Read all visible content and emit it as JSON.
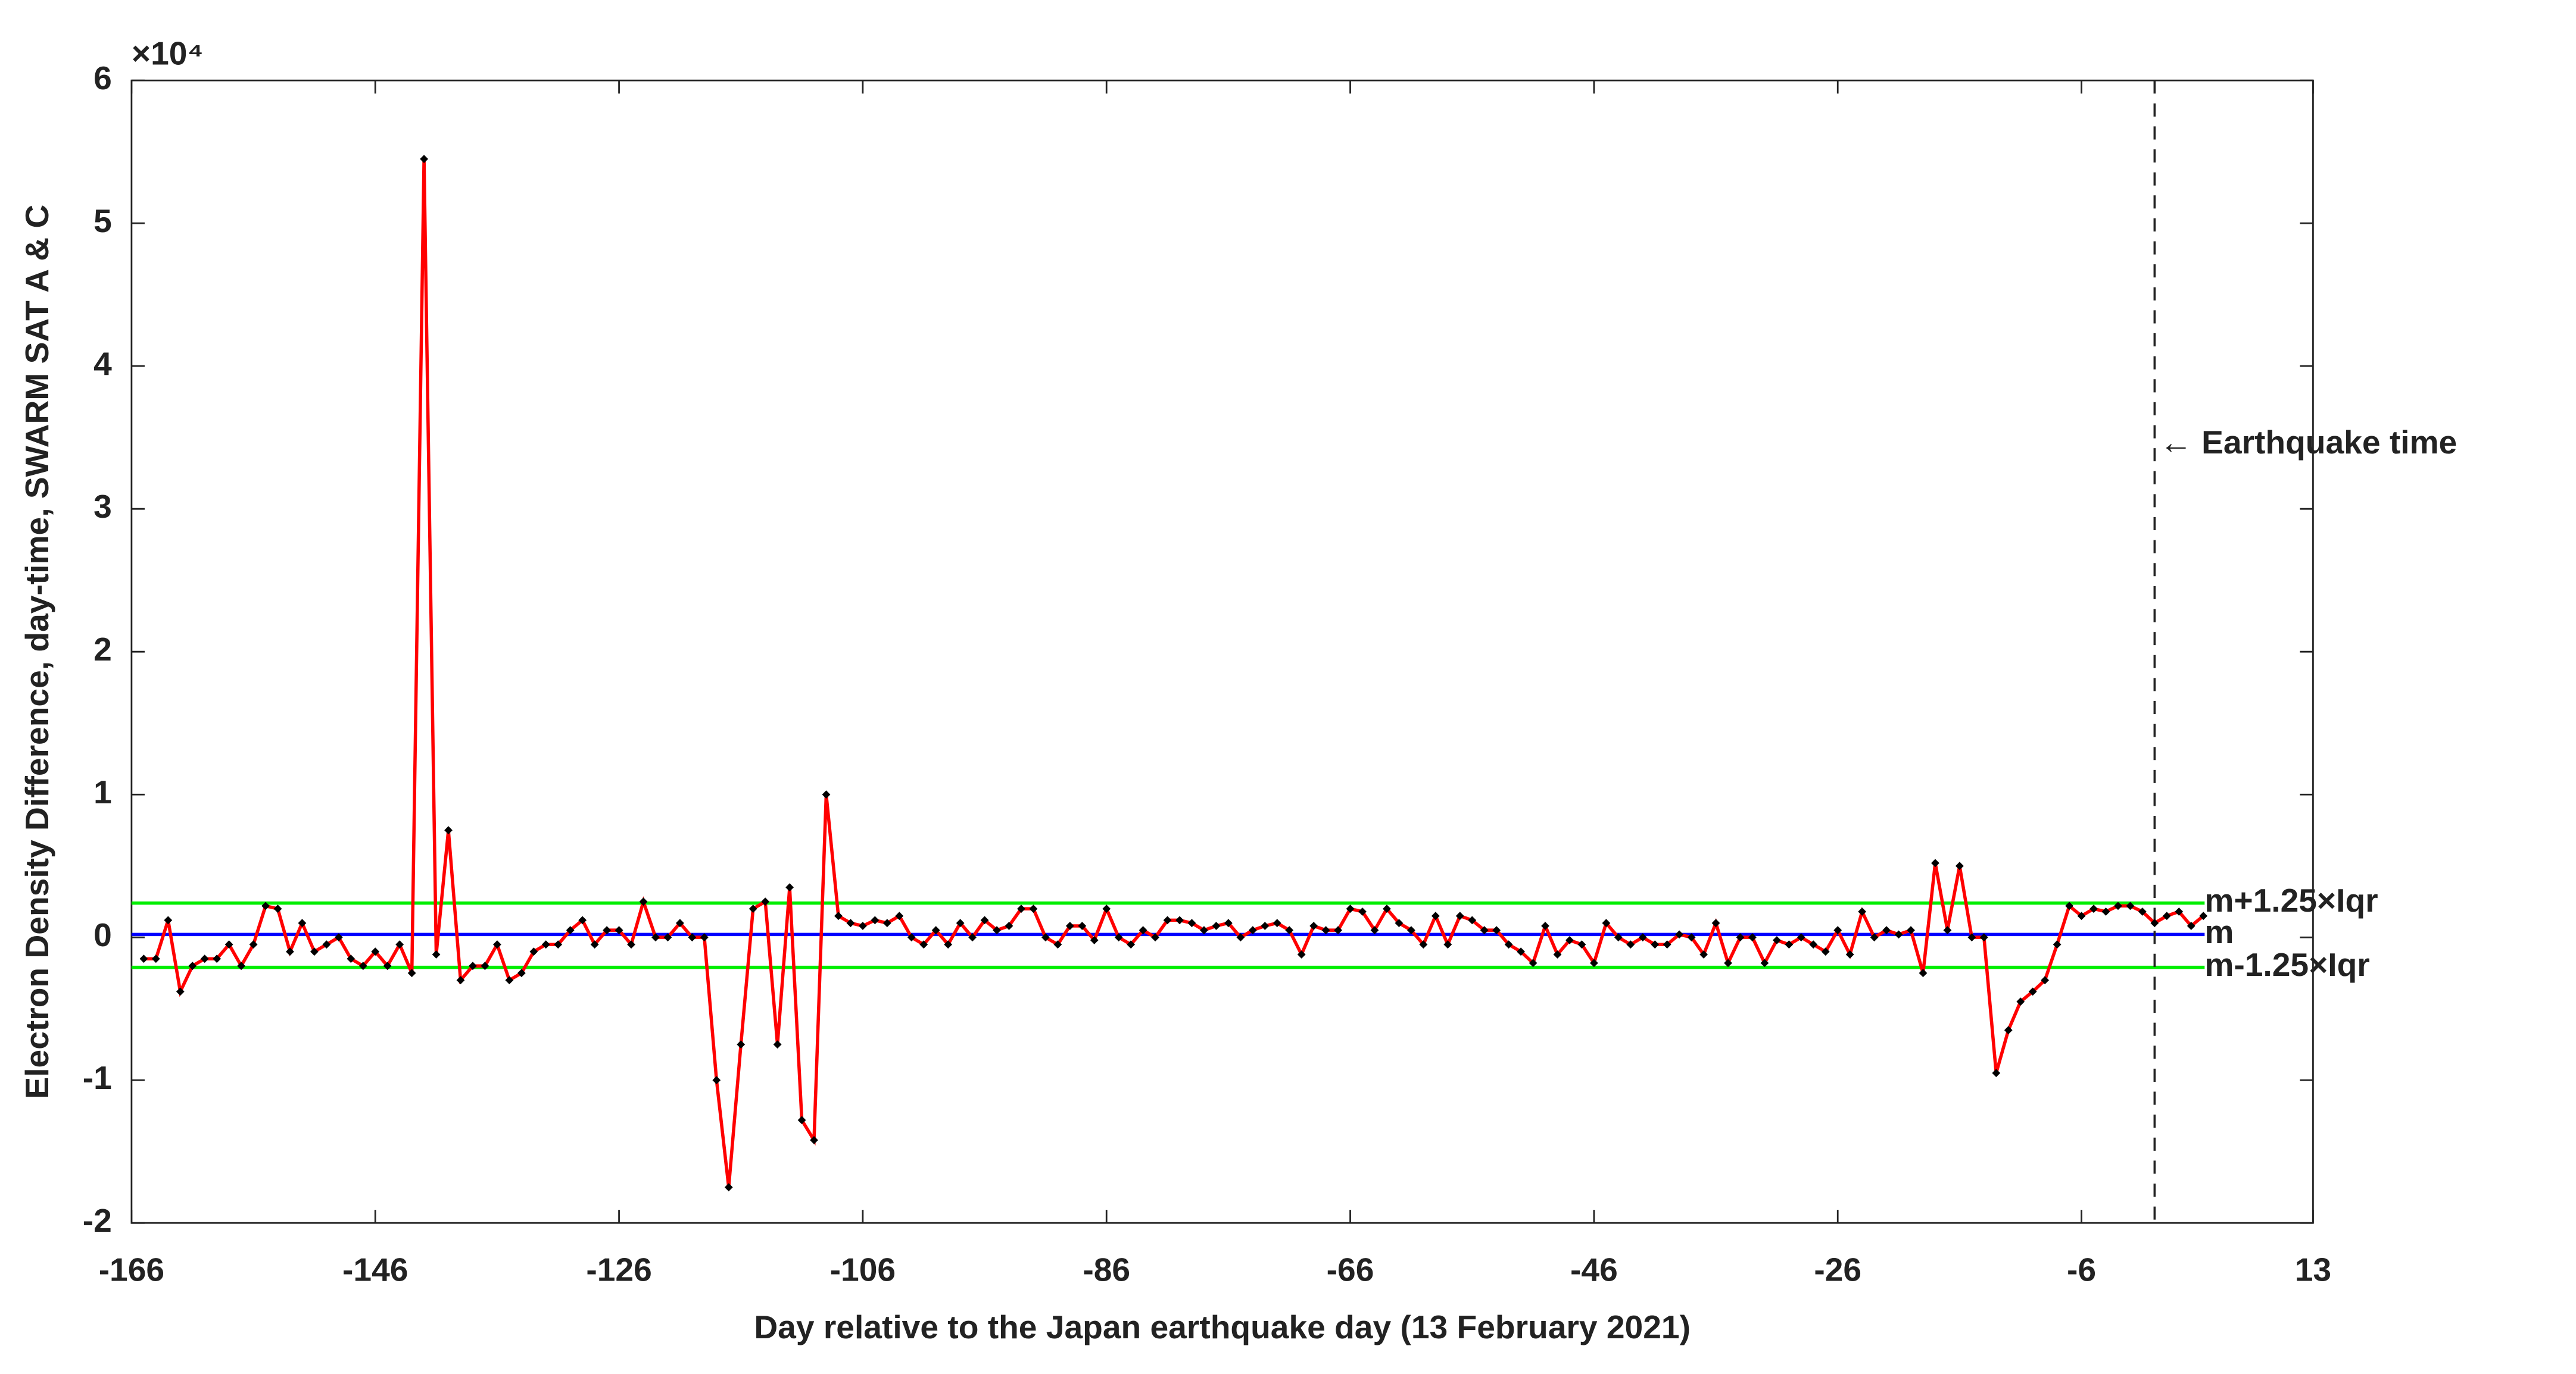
{
  "chart_data": {
    "type": "line",
    "y_label": "Electron Density Difference, day-time, SWARM SAT A & C",
    "x_label": "Day relative to the Japan earthquake day (13 February 2021)",
    "y_multiplier": "×10⁴",
    "x": [
      -165,
      -164,
      -163,
      -162,
      -161,
      -160,
      -159,
      -158,
      -157,
      -156,
      -155,
      -154,
      -153,
      -152,
      -151,
      -150,
      -149,
      -148,
      -147,
      -146,
      -145,
      -144,
      -143,
      -142,
      -141,
      -140,
      -139,
      -138,
      -137,
      -136,
      -135,
      -134,
      -133,
      -132,
      -131,
      -130,
      -129,
      -128,
      -127,
      -126,
      -125,
      -124,
      -123,
      -122,
      -121,
      -120,
      -119,
      -118,
      -117,
      -116,
      -115,
      -114,
      -113,
      -112,
      -111,
      -110,
      -109,
      -108,
      -107,
      -106,
      -105,
      -104,
      -103,
      -102,
      -101,
      -100,
      -99,
      -98,
      -97,
      -96,
      -95,
      -94,
      -93,
      -92,
      -91,
      -90,
      -89,
      -88,
      -87,
      -86,
      -85,
      -84,
      -83,
      -82,
      -81,
      -80,
      -79,
      -78,
      -77,
      -76,
      -75,
      -74,
      -73,
      -72,
      -71,
      -70,
      -69,
      -68,
      -67,
      -66,
      -65,
      -64,
      -63,
      -62,
      -61,
      -60,
      -59,
      -58,
      -57,
      -56,
      -55,
      -54,
      -53,
      -52,
      -51,
      -50,
      -49,
      -48,
      -47,
      -46,
      -45,
      -44,
      -43,
      -42,
      -41,
      -40,
      -39,
      -38,
      -37,
      -36,
      -35,
      -34,
      -33,
      -32,
      -31,
      -30,
      -29,
      -28,
      -27,
      -26,
      -25,
      -24,
      -23,
      -22,
      -21,
      -20,
      -19,
      -18,
      -17,
      -16,
      -15,
      -14,
      -13,
      -12,
      -11,
      -10,
      -9,
      -8,
      -7,
      -6,
      -5,
      -4,
      -3,
      -2,
      -1,
      0,
      1,
      2,
      3,
      4
    ],
    "series": [
      {
        "color": "#ff0000",
        "marker_color": "#000000",
        "values": [
          -0.15,
          -0.15,
          0.12,
          -0.38,
          -0.2,
          -0.15,
          -0.15,
          -0.05,
          -0.2,
          -0.05,
          0.22,
          0.2,
          -0.1,
          0.1,
          -0.1,
          -0.05,
          0,
          -0.15,
          -0.2,
          -0.1,
          -0.2,
          -0.05,
          -0.25,
          5.45,
          -0.12,
          0.75,
          -0.3,
          -0.2,
          -0.2,
          -0.05,
          -0.3,
          -0.25,
          -0.1,
          -0.05,
          -0.05,
          0.05,
          0.12,
          -0.05,
          0.05,
          0.05,
          -0.05,
          0.25,
          0,
          0,
          0.1,
          0,
          0,
          -1,
          -1.75,
          -0.75,
          0.2,
          0.25,
          -0.75,
          0.35,
          -1.28,
          -1.42,
          1,
          0.15,
          0.1,
          0.08,
          0.12,
          0.1,
          0.15,
          0,
          -0.05,
          0.05,
          -0.05,
          0.1,
          0,
          0.12,
          0.05,
          0.08,
          0.2,
          0.2,
          0,
          -0.05,
          0.08,
          0.08,
          -0.02,
          0.2,
          0,
          -0.05,
          0.05,
          0,
          0.12,
          0.12,
          0.1,
          0.05,
          0.08,
          0.1,
          0,
          0.05,
          0.08,
          0.1,
          0.05,
          -0.12,
          0.08,
          0.05,
          0.05,
          0.2,
          0.18,
          0.05,
          0.2,
          0.1,
          0.05,
          -0.05,
          0.15,
          -0.05,
          0.15,
          0.12,
          0.05,
          0.05,
          -0.05,
          -0.1,
          -0.18,
          0.08,
          -0.12,
          -0.02,
          -0.05,
          -0.18,
          0.1,
          0,
          -0.05,
          0,
          -0.05,
          -0.05,
          0.02,
          0,
          -0.12,
          0.1,
          -0.18,
          0,
          0,
          -0.18,
          -0.02,
          -0.05,
          0,
          -0.05,
          -0.1,
          0.05,
          -0.12,
          0.18,
          0,
          0.05,
          0.02,
          0.05,
          -0.25,
          0.52,
          0.05,
          0.5,
          0,
          0,
          -0.95,
          -0.65,
          -0.45,
          -0.38,
          -0.3,
          -0.05,
          0.22,
          0.15,
          0.2,
          0.18,
          0.22,
          0.22,
          0.18,
          0.1,
          0.15,
          0.18,
          0.08,
          0.15
        ]
      }
    ],
    "reference_lines": [
      {
        "label": "m+1.25×Iqr",
        "value": 0.24,
        "color": "#00ee00"
      },
      {
        "label": "m",
        "value": 0.02,
        "color": "#0000ff"
      },
      {
        "label": "m-1.25×Iqr",
        "value": -0.21,
        "color": "#00ee00"
      }
    ],
    "event": {
      "x": 0,
      "label": "← Earthquake time",
      "label_y": 3.45,
      "color": "#0000ff"
    },
    "xlim": [
      -166,
      13
    ],
    "xticks": [
      -166,
      -146,
      -126,
      -106,
      -86,
      -66,
      -46,
      -26,
      -6,
      13
    ],
    "ylim": [
      -2,
      6
    ],
    "yticks": [
      -2,
      -1,
      0,
      1,
      2,
      3,
      4,
      5,
      6
    ]
  }
}
